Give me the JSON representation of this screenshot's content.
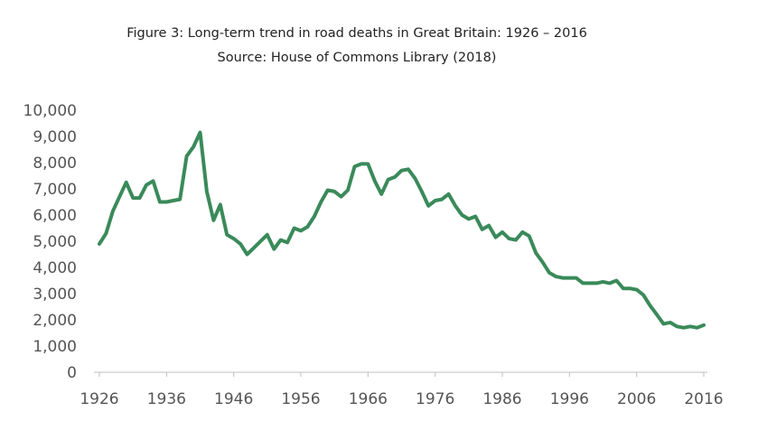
{
  "chart_data": {
    "type": "line",
    "title": "Figure 3: Long-term trend in road deaths in Great Britain: 1926 – 2016",
    "subtitle": "Source: House of Commons Library (2018)",
    "xlabel": "",
    "ylabel": "",
    "xlim": [
      1926,
      2016
    ],
    "ylim": [
      0,
      10000
    ],
    "grid": false,
    "legend": "none",
    "line_color": "#3a8a5a",
    "x_tick_labels": [
      "1926",
      "1936",
      "1946",
      "1956",
      "1966",
      "1976",
      "1986",
      "1996",
      "2006",
      "2016"
    ],
    "y_tick_labels": [
      "0",
      "1,000",
      "2,000",
      "3,000",
      "4,000",
      "5,000",
      "6,000",
      "7,000",
      "8,000",
      "9,000",
      "10,000"
    ],
    "x_ticks": [
      1926,
      1936,
      1946,
      1956,
      1966,
      1976,
      1986,
      1996,
      2006,
      2016
    ],
    "y_ticks": [
      0,
      1000,
      2000,
      3000,
      4000,
      5000,
      6000,
      7000,
      8000,
      9000,
      10000
    ],
    "series": [
      {
        "x": [
          1926,
          1927,
          1928,
          1929,
          1930,
          1931,
          1932,
          1933,
          1934,
          1935,
          1936,
          1937,
          1938,
          1939,
          1940,
          1941,
          1942,
          1943,
          1944,
          1945,
          1946,
          1947,
          1948,
          1949,
          1950,
          1951,
          1952,
          1953,
          1954,
          1955,
          1956,
          1957,
          1958,
          1959,
          1960,
          1961,
          1962,
          1963,
          1964,
          1965,
          1966,
          1967,
          1968,
          1969,
          1970,
          1971,
          1972,
          1973,
          1974,
          1975,
          1976,
          1977,
          1978,
          1979,
          1980,
          1981,
          1982,
          1983,
          1984,
          1985,
          1986,
          1987,
          1988,
          1989,
          1990,
          1991,
          1992,
          1993,
          1994,
          1995,
          1996,
          1997,
          1998,
          1999,
          2000,
          2001,
          2002,
          2003,
          2004,
          2005,
          2006,
          2007,
          2008,
          2009,
          2010,
          2011,
          2012,
          2013,
          2014,
          2015,
          2016
        ],
        "values": [
          4900,
          5300,
          6150,
          6700,
          7250,
          6650,
          6650,
          7150,
          7300,
          6500,
          6500,
          6550,
          6600,
          8250,
          8600,
          9150,
          6900,
          5800,
          6400,
          5250,
          5100,
          4900,
          4500,
          4750,
          5000,
          5250,
          4700,
          5050,
          4950,
          5500,
          5400,
          5550,
          5950,
          6500,
          6950,
          6900,
          6700,
          6950,
          7850,
          7950,
          7950,
          7300,
          6800,
          7350,
          7450,
          7700,
          7750,
          7400,
          6900,
          6350,
          6550,
          6600,
          6800,
          6350,
          6000,
          5850,
          5950,
          5450,
          5600,
          5150,
          5350,
          5100,
          5050,
          5350,
          5200,
          4550,
          4200,
          3800,
          3650,
          3600,
          3600,
          3600,
          3400,
          3400,
          3400,
          3450,
          3400,
          3500,
          3200,
          3200,
          3150,
          2950,
          2550,
          2200,
          1850,
          1900,
          1750,
          1700,
          1750,
          1700,
          1800
        ]
      }
    ]
  }
}
